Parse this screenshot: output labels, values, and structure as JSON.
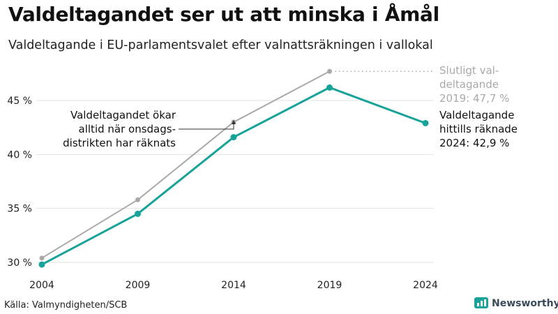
{
  "header": {
    "title": "Valdeltagandet ser ut att minska i Åmål",
    "subtitle": "Valdeltagande i EU-parlamentsvalet efter valnattsräkningen i vallokal"
  },
  "footer": {
    "source": "Källa: Valmyndigheten/SCB",
    "brand": "Newsworthy"
  },
  "colors": {
    "final_series": "#a9a9a9",
    "count_series": "#17a398",
    "grid": "#e2e2e2",
    "brand_icon": "#17a398"
  },
  "chart_data": {
    "type": "line",
    "x": [
      2004,
      2009,
      2014,
      2019,
      2024
    ],
    "ylim": [
      30,
      48
    ],
    "yticks": [
      30,
      35,
      40,
      45
    ],
    "ytick_labels": [
      "30 %",
      "35 %",
      "40 %",
      "45 %"
    ],
    "xtick_labels": [
      "2004",
      "2009",
      "2014",
      "2019",
      "2024"
    ],
    "grid": true,
    "series": [
      {
        "key": "final",
        "values": [
          30.4,
          35.8,
          43.0,
          47.7,
          null
        ]
      },
      {
        "key": "count",
        "values": [
          29.8,
          34.5,
          41.6,
          46.2,
          42.9
        ]
      }
    ],
    "annotations": {
      "final_label": [
        "Slutligt val-",
        "deltagande",
        "2019: 47,7 %"
      ],
      "current_label": [
        "Valdeltagande",
        "hittills räknade",
        "2024: 42,9 %"
      ],
      "note": [
        "Valdeltagandet ökar",
        "alltid när onsdags-",
        "distrikten har räknats"
      ]
    }
  }
}
